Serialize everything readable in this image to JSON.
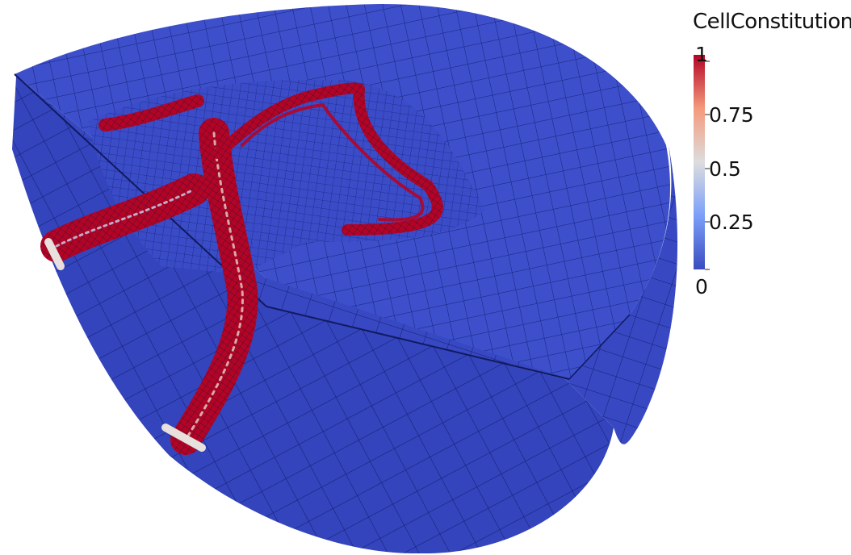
{
  "colorbar": {
    "title": "CellConstitution",
    "min_label": "0",
    "max_label": "1",
    "ticks": [
      "0.75",
      "0.5",
      "0.25"
    ],
    "range": [
      0,
      1
    ],
    "colormap": [
      "#3b4cc0",
      "#dddddd",
      "#b40426"
    ]
  },
  "colors": {
    "mesh_fill": "#3b4cc8",
    "mesh_line": "#13206e",
    "high_value": "#b40426",
    "mid_value": "#dcdcdc",
    "background": "#ffffff"
  }
}
